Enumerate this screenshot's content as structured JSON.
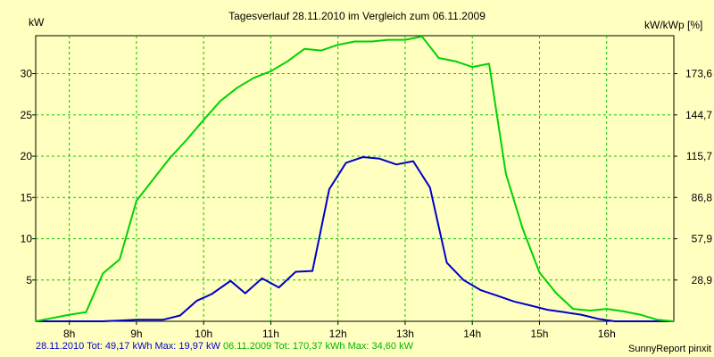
{
  "chart_data": {
    "type": "line",
    "title": "Tagesverlauf 28.11.2010 im Vergleich zum 06.11.2009",
    "ylabel": "kW",
    "ylabel_right": "kW/kWp [%]",
    "xlim": [
      7.5,
      17
    ],
    "ylim": [
      0,
      34.6
    ],
    "x_ticks": [
      8,
      9,
      10,
      11,
      12,
      13,
      14,
      15,
      16
    ],
    "x_tick_labels": [
      "8h",
      "9h",
      "10h",
      "11h",
      "12h",
      "13h",
      "14h",
      "15h",
      "16h"
    ],
    "y_ticks": [
      5,
      10,
      15,
      20,
      25,
      30
    ],
    "y_tick_labels": [
      "5",
      "10",
      "15",
      "20",
      "25",
      "30"
    ],
    "y_right_ticks": [
      5,
      10,
      15,
      20,
      25,
      30
    ],
    "y_right_tick_labels": [
      "28,9",
      "57,9",
      "86,8",
      "115,7",
      "144,7",
      "173,6"
    ],
    "grid": true,
    "series": [
      {
        "name": "28.11.2010 Tot: 49,17 kWh Max: 19,97 kW",
        "color": "#0000c8",
        "points": [
          [
            7.5,
            0.0
          ],
          [
            8.5,
            0.0
          ],
          [
            9.0,
            0.2
          ],
          [
            9.4,
            0.2
          ],
          [
            9.65,
            0.7
          ],
          [
            9.9,
            2.5
          ],
          [
            10.12,
            3.3
          ],
          [
            10.4,
            4.9
          ],
          [
            10.62,
            3.4
          ],
          [
            10.87,
            5.2
          ],
          [
            11.12,
            4.1
          ],
          [
            11.37,
            6.0
          ],
          [
            11.62,
            6.1
          ],
          [
            11.87,
            16.0
          ],
          [
            12.12,
            19.2
          ],
          [
            12.37,
            19.9
          ],
          [
            12.62,
            19.7
          ],
          [
            12.87,
            19.0
          ],
          [
            13.12,
            19.4
          ],
          [
            13.37,
            16.2
          ],
          [
            13.62,
            7.1
          ],
          [
            13.87,
            5.0
          ],
          [
            14.12,
            3.8
          ],
          [
            14.37,
            3.1
          ],
          [
            14.62,
            2.4
          ],
          [
            14.87,
            1.9
          ],
          [
            15.12,
            1.4
          ],
          [
            15.37,
            1.1
          ],
          [
            15.62,
            0.8
          ],
          [
            15.87,
            0.3
          ],
          [
            16.12,
            0.0
          ],
          [
            17.0,
            0.0
          ]
        ]
      },
      {
        "name": "06.11.2009 Tot: 170,37 kWh Max: 34,60 kW",
        "color": "#00d200",
        "points": [
          [
            7.5,
            0.0
          ],
          [
            7.75,
            0.4
          ],
          [
            8.0,
            0.8
          ],
          [
            8.25,
            1.1
          ],
          [
            8.5,
            5.8
          ],
          [
            8.75,
            7.5
          ],
          [
            9.0,
            14.6
          ],
          [
            9.25,
            17.2
          ],
          [
            9.5,
            19.8
          ],
          [
            9.75,
            22.0
          ],
          [
            10.0,
            24.4
          ],
          [
            10.25,
            26.7
          ],
          [
            10.5,
            28.3
          ],
          [
            10.75,
            29.5
          ],
          [
            11.0,
            30.3
          ],
          [
            11.25,
            31.5
          ],
          [
            11.5,
            33.0
          ],
          [
            11.75,
            32.8
          ],
          [
            12.0,
            33.5
          ],
          [
            12.25,
            33.9
          ],
          [
            12.5,
            33.9
          ],
          [
            12.75,
            34.1
          ],
          [
            13.0,
            34.1
          ],
          [
            13.25,
            34.5
          ],
          [
            13.5,
            31.9
          ],
          [
            13.75,
            31.5
          ],
          [
            14.0,
            30.8
          ],
          [
            14.25,
            31.2
          ],
          [
            14.5,
            17.9
          ],
          [
            14.75,
            11.2
          ],
          [
            15.0,
            5.9
          ],
          [
            15.25,
            3.4
          ],
          [
            15.5,
            1.5
          ],
          [
            15.75,
            1.3
          ],
          [
            16.0,
            1.5
          ],
          [
            16.25,
            1.2
          ],
          [
            16.5,
            0.8
          ],
          [
            16.75,
            0.2
          ],
          [
            17.0,
            0.0
          ]
        ]
      }
    ]
  },
  "footer": {
    "blue_text": "28.11.2010 Tot: 49,17 kWh Max: 19,97 kW",
    "green_text": "06.11.2009 Tot: 170,37 kWh Max: 34,60 kW",
    "credit": "SunnyReport pinxit"
  }
}
